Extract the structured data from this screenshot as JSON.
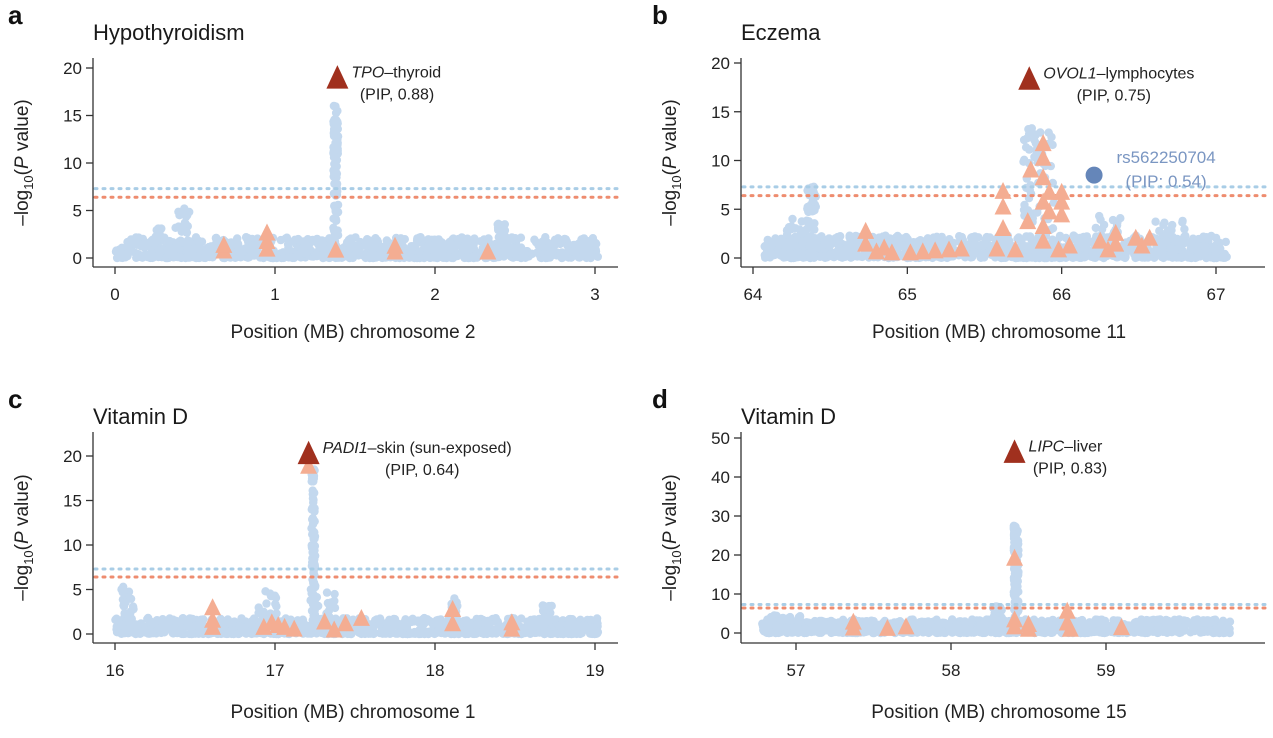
{
  "figure": {
    "legend": {
      "threshold_lines": [
        {
          "name": "gwas-threshold",
          "color": "#a9cde6",
          "style": "dotted"
        },
        {
          "name": "twas-threshold",
          "color": "#ee8c6f",
          "style": "dotted"
        }
      ]
    },
    "colors": {
      "snp_points": "#c3d8ee",
      "twas_triangles": "#f4ad92",
      "top_gene_triangle": "#a0301e",
      "highlight_snp": "#6586b9",
      "highlight_snp_label": "#7a96c2"
    }
  },
  "chart_data": [
    {
      "panel": "a",
      "type": "scatter",
      "title": "Hypothyroidism",
      "xlabel": "Position (MB) chromosome 2",
      "ylabel": "-log10(P value)",
      "xlim": [
        0,
        3.17
      ],
      "ylim": [
        0,
        21
      ],
      "xticks": [
        "0",
        "1",
        "2",
        "3"
      ],
      "xtick_values": [
        0,
        1,
        2,
        3
      ],
      "yticks": [
        "0",
        "5",
        "10",
        "15",
        "20"
      ],
      "ytick_values": [
        0,
        5,
        10,
        15,
        20
      ],
      "thresholds": {
        "blue": 7.3,
        "orange": 6.4
      },
      "snp_range": [
        0.0,
        3.02
      ],
      "snp_baseline_max": 2.2,
      "snp_peaks": [
        {
          "x": 0.42,
          "ymax": 5.2,
          "width": 0.05
        },
        {
          "x": 1.38,
          "ymax": 16.0,
          "width": 0.015
        },
        {
          "x": 2.42,
          "ymax": 3.6,
          "width": 0.03
        },
        {
          "x": 0.27,
          "ymax": 3.1,
          "width": 0.02
        }
      ],
      "twas_triangles": [
        {
          "x": 0.68,
          "y": 0.5
        },
        {
          "x": 0.68,
          "y": 1.1
        },
        {
          "x": 0.95,
          "y": 0.7
        },
        {
          "x": 0.95,
          "y": 1.5
        },
        {
          "x": 0.95,
          "y": 2.4
        },
        {
          "x": 1.38,
          "y": 0.6
        },
        {
          "x": 1.75,
          "y": 0.4
        },
        {
          "x": 1.75,
          "y": 1.0
        },
        {
          "x": 2.33,
          "y": 0.4
        }
      ],
      "top_gene": {
        "x": 1.39,
        "y": 18.6,
        "gene": "TPO",
        "tissue": "thyroid",
        "pip_label": "(PIP, 0.88)",
        "pip": 0.88
      }
    },
    {
      "panel": "b",
      "type": "scatter",
      "title": "Eczema",
      "xlabel": "Position (MB) chromosome 11",
      "ylabel": "-log10(P value)",
      "xlim": [
        63.92,
        67.22
      ],
      "ylim": [
        0,
        21
      ],
      "xticks": [
        "64",
        "65",
        "66",
        "67"
      ],
      "xtick_values": [
        64,
        65,
        66,
        67
      ],
      "yticks": [
        "0",
        "5",
        "10",
        "15",
        "20"
      ],
      "ytick_values": [
        0,
        5,
        10,
        15,
        20
      ],
      "thresholds": {
        "blue": 7.3,
        "orange": 6.4
      },
      "snp_range": [
        64.07,
        67.07
      ],
      "snp_baseline_max": 2.3,
      "snp_peaks": [
        {
          "x": 64.38,
          "ymax": 7.3,
          "width": 0.03
        },
        {
          "x": 64.3,
          "ymax": 4.0,
          "width": 0.08
        },
        {
          "x": 65.85,
          "ymax": 13.3,
          "width": 0.1
        },
        {
          "x": 66.3,
          "ymax": 4.3,
          "width": 0.08
        },
        {
          "x": 66.7,
          "ymax": 3.8,
          "width": 0.1
        }
      ],
      "twas_triangles": [
        {
          "x": 64.73,
          "y": 2.5
        },
        {
          "x": 64.73,
          "y": 1.2
        },
        {
          "x": 64.8,
          "y": 0.4
        },
        {
          "x": 64.85,
          "y": 0.8
        },
        {
          "x": 64.9,
          "y": 0.3
        },
        {
          "x": 65.02,
          "y": 0.3
        },
        {
          "x": 65.1,
          "y": 0.4
        },
        {
          "x": 65.18,
          "y": 0.5
        },
        {
          "x": 65.27,
          "y": 0.6
        },
        {
          "x": 65.35,
          "y": 0.7
        },
        {
          "x": 65.58,
          "y": 0.7
        },
        {
          "x": 65.62,
          "y": 2.8
        },
        {
          "x": 65.62,
          "y": 5.0
        },
        {
          "x": 65.62,
          "y": 6.6
        },
        {
          "x": 65.7,
          "y": 0.6
        },
        {
          "x": 65.78,
          "y": 3.5
        },
        {
          "x": 65.8,
          "y": 8.8
        },
        {
          "x": 65.88,
          "y": 11.5
        },
        {
          "x": 65.88,
          "y": 10.0
        },
        {
          "x": 65.88,
          "y": 8.0
        },
        {
          "x": 65.88,
          "y": 5.5
        },
        {
          "x": 65.88,
          "y": 3.0
        },
        {
          "x": 65.88,
          "y": 1.5
        },
        {
          "x": 65.92,
          "y": 6.5
        },
        {
          "x": 65.92,
          "y": 4.5
        },
        {
          "x": 66.0,
          "y": 6.5
        },
        {
          "x": 66.0,
          "y": 5.5
        },
        {
          "x": 66.0,
          "y": 4.2
        },
        {
          "x": 65.98,
          "y": 0.6
        },
        {
          "x": 66.05,
          "y": 1.0
        },
        {
          "x": 66.25,
          "y": 1.5
        },
        {
          "x": 66.3,
          "y": 0.6
        },
        {
          "x": 66.35,
          "y": 2.3
        },
        {
          "x": 66.35,
          "y": 1.2
        },
        {
          "x": 66.48,
          "y": 1.8
        },
        {
          "x": 66.52,
          "y": 1.0
        },
        {
          "x": 66.57,
          "y": 1.8
        }
      ],
      "top_gene": {
        "x": 65.79,
        "y": 18.0,
        "gene": "OVOL1",
        "tissue": "lymphocytes",
        "pip_label": "(PIP, 0.75)",
        "pip": 0.75
      },
      "highlight_snp": {
        "x": 66.21,
        "y": 8.5,
        "label": "rs562250704",
        "pip_label": "(PIP: 0.54)",
        "pip": 0.54
      }
    },
    {
      "panel": "c",
      "type": "scatter",
      "title": "Vitamin D",
      "xlabel": "Position (MB) chromosome 1",
      "ylabel": "-log10(P value)",
      "xlim": [
        15.86,
        19.17
      ],
      "ylim": [
        0,
        22.5
      ],
      "xticks": [
        "16",
        "17",
        "18",
        "19"
      ],
      "xtick_values": [
        16,
        17,
        18,
        19
      ],
      "yticks": [
        "0",
        "5",
        "10",
        "15",
        "20"
      ],
      "ytick_values": [
        0,
        5,
        10,
        15,
        20
      ],
      "thresholds": {
        "blue": 7.3,
        "orange": 6.4
      },
      "snp_range": [
        16.0,
        19.02
      ],
      "snp_baseline_max": 1.8,
      "snp_peaks": [
        {
          "x": 16.08,
          "ymax": 5.3,
          "width": 0.04
        },
        {
          "x": 16.95,
          "ymax": 4.8,
          "width": 0.06
        },
        {
          "x": 17.24,
          "ymax": 18.5,
          "width": 0.012
        },
        {
          "x": 17.3,
          "ymax": 5.0,
          "width": 0.08
        },
        {
          "x": 18.12,
          "ymax": 4.0,
          "width": 0.02
        },
        {
          "x": 18.7,
          "ymax": 3.2,
          "width": 0.03
        }
      ],
      "twas_triangles": [
        {
          "x": 16.61,
          "y": 2.7
        },
        {
          "x": 16.61,
          "y": 1.3
        },
        {
          "x": 16.61,
          "y": 0.5
        },
        {
          "x": 16.93,
          "y": 0.5
        },
        {
          "x": 16.98,
          "y": 1.0
        },
        {
          "x": 17.02,
          "y": 0.7
        },
        {
          "x": 17.06,
          "y": 0.5
        },
        {
          "x": 17.12,
          "y": 0.3
        },
        {
          "x": 17.21,
          "y": 18.6
        },
        {
          "x": 17.31,
          "y": 1.1
        },
        {
          "x": 17.37,
          "y": 0.2
        },
        {
          "x": 17.44,
          "y": 0.9
        },
        {
          "x": 17.54,
          "y": 1.5
        },
        {
          "x": 18.11,
          "y": 2.5
        },
        {
          "x": 18.11,
          "y": 0.9
        },
        {
          "x": 18.48,
          "y": 1.0
        },
        {
          "x": 18.48,
          "y": 0.3
        }
      ],
      "top_gene": {
        "x": 17.21,
        "y": 19.9,
        "gene": "PADI1",
        "tissue": "skin (sun-exposed)",
        "pip_label": "(PIP, 0.64)",
        "pip": 0.64
      }
    },
    {
      "panel": "d",
      "type": "scatter",
      "title": "Vitamin D",
      "xlabel": "Position (MB) chromosome 15",
      "ylabel": "-log10(P value)",
      "xlim": [
        56.64,
        59.95
      ],
      "ylim": [
        0,
        51
      ],
      "xticks": [
        "57",
        "58",
        "59"
      ],
      "xtick_values": [
        57,
        58,
        59
      ],
      "yticks": [
        "0",
        "10",
        "20",
        "30",
        "40",
        "50"
      ],
      "ytick_values": [
        0,
        10,
        20,
        30,
        40,
        50
      ],
      "thresholds": {
        "blue": 7.3,
        "orange": 6.4
      },
      "snp_range": [
        56.78,
        59.8
      ],
      "snp_baseline_max": 3.5,
      "snp_peaks": [
        {
          "x": 58.42,
          "ymax": 27.5,
          "width": 0.015
        },
        {
          "x": 58.3,
          "ymax": 6.8,
          "width": 0.03
        },
        {
          "x": 56.9,
          "ymax": 4.5,
          "width": 0.15
        }
      ],
      "twas_triangles": [
        {
          "x": 57.37,
          "y": 2.2
        },
        {
          "x": 57.37,
          "y": 0.7
        },
        {
          "x": 57.59,
          "y": 0.6
        },
        {
          "x": 57.71,
          "y": 1.0
        },
        {
          "x": 58.41,
          "y": 18.6
        },
        {
          "x": 58.41,
          "y": 2.8
        },
        {
          "x": 58.41,
          "y": 1.0
        },
        {
          "x": 58.5,
          "y": 1.6
        },
        {
          "x": 58.5,
          "y": 0.4
        },
        {
          "x": 58.75,
          "y": 5.0
        },
        {
          "x": 58.75,
          "y": 2.0
        },
        {
          "x": 58.77,
          "y": 0.4
        },
        {
          "x": 59.1,
          "y": 0.8
        }
      ],
      "top_gene": {
        "x": 58.41,
        "y": 45.5,
        "gene": "LIPC",
        "tissue": "liver",
        "pip_label": "(PIP, 0.83)",
        "pip": 0.83
      }
    }
  ]
}
